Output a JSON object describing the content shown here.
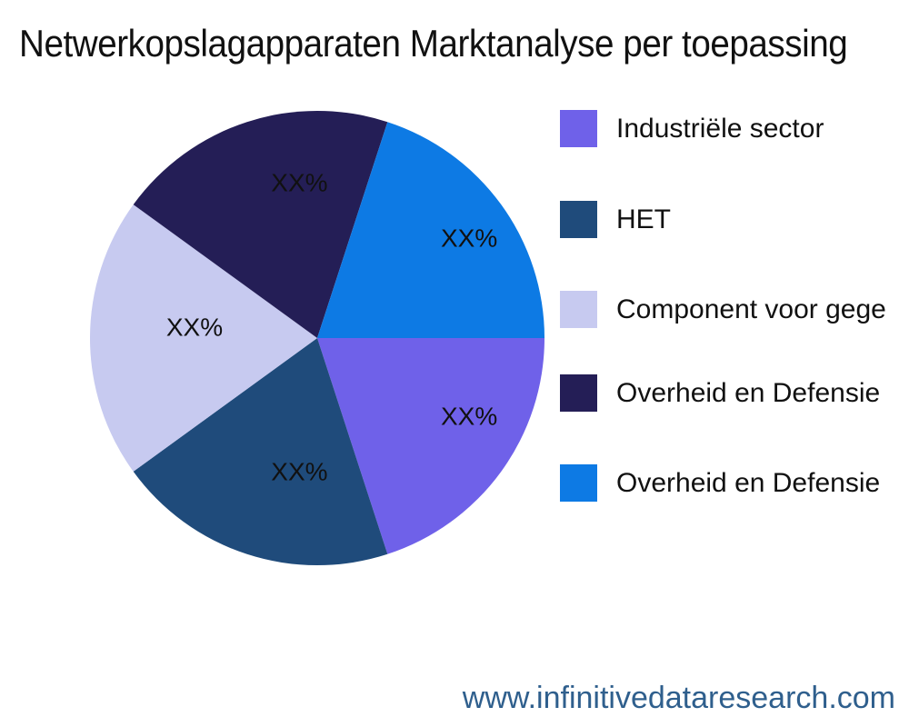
{
  "page": {
    "background": "#ffffff",
    "title_color": "#111111",
    "watermark": "www.infinitivedataresearch.com",
    "watermark_color": "#2F5F8D"
  },
  "chart_data": {
    "type": "pie",
    "title": "Netwerkopslagapparaten Marktanalyse per toepassing",
    "legend_position": "right",
    "start_angle_deg": 0,
    "direction": "clockwise",
    "slices": [
      {
        "label": "Industriële sector",
        "value": 20,
        "value_label": "XX%",
        "color": "#6F61E9"
      },
      {
        "label": "HET",
        "value": 20,
        "value_label": "XX%",
        "color": "#1F4B7B"
      },
      {
        "label": "Component voor gege",
        "value": 20,
        "value_label": "XX%",
        "color": "#C7CAF0"
      },
      {
        "label": "Overheid en Defensie",
        "value": 20,
        "value_label": "XX%",
        "color": "#241E56"
      },
      {
        "label": "Overheid en Defensie",
        "value": 20,
        "value_label": "XX%",
        "color": "#0D7AE4"
      }
    ]
  }
}
